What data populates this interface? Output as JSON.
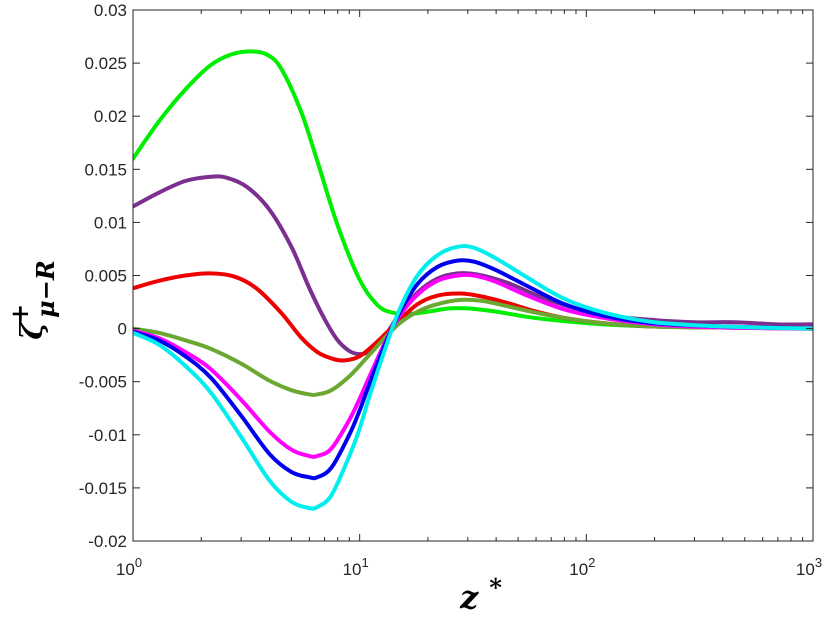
{
  "chart_data": {
    "type": "line",
    "title": "",
    "xlabel": "z*",
    "ylabel": "ζ+ μ−R",
    "xscale": "log",
    "xlim": [
      1,
      1000
    ],
    "ylim": [
      -0.02,
      0.03
    ],
    "grid": false,
    "legend": "none",
    "x_ticks": [
      {
        "value": 1,
        "base": "10",
        "exp": "0"
      },
      {
        "value": 10,
        "base": "10",
        "exp": "1"
      },
      {
        "value": 100,
        "base": "10",
        "exp": "2"
      },
      {
        "value": 1000,
        "base": "10",
        "exp": "3"
      }
    ],
    "y_ticks": [
      {
        "value": 0.03,
        "label": "0.03"
      },
      {
        "value": 0.025,
        "label": "0.025"
      },
      {
        "value": 0.02,
        "label": "0.02"
      },
      {
        "value": 0.015,
        "label": "0.015"
      },
      {
        "value": 0.01,
        "label": "0.01"
      },
      {
        "value": 0.005,
        "label": "0.005"
      },
      {
        "value": 0,
        "label": "0"
      },
      {
        "value": -0.005,
        "label": "-0.005"
      },
      {
        "value": -0.01,
        "label": "-0.01"
      },
      {
        "value": -0.015,
        "label": "-0.015"
      },
      {
        "value": -0.02,
        "label": "-0.02"
      }
    ],
    "series": [
      {
        "color": "#00ee00",
        "x": [
          1,
          1.3,
          1.7,
          2.2,
          2.7,
          3.3,
          3.9,
          4.5,
          5.5,
          6.5,
          8,
          10,
          12,
          14,
          17,
          20,
          25,
          30,
          40,
          55,
          80,
          120,
          200,
          400,
          1000
        ],
        "y": [
          0.016,
          0.0195,
          0.0225,
          0.0248,
          0.0258,
          0.0261,
          0.0258,
          0.0245,
          0.0205,
          0.0158,
          0.0097,
          0.0046,
          0.0022,
          0.0015,
          0.0014,
          0.0016,
          0.0019,
          0.0019,
          0.0016,
          0.0011,
          0.0007,
          0.0004,
          0.0002,
          0.0001,
          0.0
        ]
      },
      {
        "color": "#7b2f8e",
        "x": [
          1,
          1.3,
          1.7,
          2.2,
          2.6,
          3.2,
          4,
          5,
          6,
          7,
          8,
          9,
          10,
          11,
          13,
          15,
          18,
          22,
          27,
          33,
          45,
          70,
          120,
          200,
          300,
          450,
          700,
          1000
        ],
        "y": [
          0.0115,
          0.0128,
          0.0139,
          0.0143,
          0.0142,
          0.0133,
          0.0112,
          0.0077,
          0.0038,
          0.0009,
          -0.0011,
          -0.0021,
          -0.0024,
          -0.0021,
          -0.0006,
          0.0014,
          0.0034,
          0.0047,
          0.0052,
          0.0051,
          0.0043,
          0.0026,
          0.0013,
          0.0008,
          0.0006,
          0.0006,
          0.0004,
          0.0004
        ]
      },
      {
        "color": "#ee0000",
        "x": [
          1,
          1.3,
          1.7,
          2.2,
          2.8,
          3.5,
          4.5,
          5.5,
          6.5,
          7.5,
          8.5,
          10,
          12,
          15,
          18,
          22,
          28,
          35,
          45,
          60,
          80,
          120,
          200,
          400,
          1000
        ],
        "y": [
          0.0038,
          0.0045,
          0.005,
          0.0052,
          0.0049,
          0.0038,
          0.0015,
          -0.0008,
          -0.0022,
          -0.0028,
          -0.003,
          -0.0026,
          -0.0012,
          0.0008,
          0.0023,
          0.0031,
          0.0033,
          0.003,
          0.0024,
          0.0016,
          0.001,
          0.0005,
          0.0002,
          0.0001,
          0.0
        ]
      },
      {
        "color": "#6aa832",
        "x": [
          1,
          1.3,
          1.7,
          2.2,
          3,
          4,
          5,
          6,
          6.5,
          7.5,
          9,
          11,
          13,
          15,
          18,
          22,
          28,
          35,
          45,
          60,
          80,
          120,
          200,
          400,
          1000
        ],
        "y": [
          0.0,
          -0.0004,
          -0.0011,
          -0.0019,
          -0.0033,
          -0.0049,
          -0.0058,
          -0.0062,
          -0.0062,
          -0.0058,
          -0.0045,
          -0.0025,
          -0.0008,
          0.0005,
          0.0016,
          0.0023,
          0.0027,
          0.0026,
          0.0021,
          0.0015,
          0.001,
          0.0005,
          0.0002,
          0.0001,
          0.0
        ]
      },
      {
        "color": "#ff00ff",
        "x": [
          1,
          1.3,
          1.7,
          2.2,
          3,
          4,
          5,
          6,
          6.5,
          7.5,
          9,
          10,
          11,
          13,
          15,
          18,
          22,
          27,
          32,
          40,
          55,
          80,
          120,
          200,
          400,
          1000
        ],
        "y": [
          -0.0002,
          -0.0009,
          -0.0022,
          -0.0038,
          -0.0067,
          -0.0097,
          -0.0114,
          -0.012,
          -0.012,
          -0.0113,
          -0.0086,
          -0.0066,
          -0.0046,
          -0.0012,
          0.0012,
          0.0032,
          0.0045,
          0.005,
          0.005,
          0.0044,
          0.0031,
          0.0018,
          0.001,
          0.0004,
          0.0001,
          0.0
        ]
      },
      {
        "color": "#0000ee",
        "x": [
          1,
          1.3,
          1.7,
          2.2,
          3,
          4,
          5,
          6,
          6.5,
          7.5,
          9,
          10,
          11,
          13,
          15,
          18,
          22,
          27,
          32,
          40,
          55,
          80,
          120,
          200,
          400,
          1000
        ],
        "y": [
          -0.0003,
          -0.0011,
          -0.0026,
          -0.0046,
          -0.0082,
          -0.0118,
          -0.0135,
          -0.014,
          -0.014,
          -0.0131,
          -0.01,
          -0.0077,
          -0.0053,
          -0.0014,
          0.0015,
          0.0042,
          0.0058,
          0.0064,
          0.0063,
          0.0055,
          0.004,
          0.0023,
          0.0012,
          0.0005,
          0.0002,
          0.0
        ]
      },
      {
        "color": "#00eeee",
        "x": [
          1,
          1.3,
          1.7,
          2.2,
          3,
          4,
          5,
          6,
          6.5,
          7.5,
          9,
          10,
          11,
          13,
          15,
          18,
          22,
          27,
          32,
          40,
          55,
          80,
          120,
          200,
          400,
          1000
        ],
        "y": [
          -0.0004,
          -0.0015,
          -0.0035,
          -0.006,
          -0.0102,
          -0.0143,
          -0.0163,
          -0.0169,
          -0.0168,
          -0.0157,
          -0.012,
          -0.0094,
          -0.0065,
          -0.0018,
          0.0018,
          0.005,
          0.0069,
          0.0077,
          0.0076,
          0.0066,
          0.0048,
          0.0028,
          0.0015,
          0.0006,
          0.0002,
          0.0
        ]
      }
    ]
  }
}
